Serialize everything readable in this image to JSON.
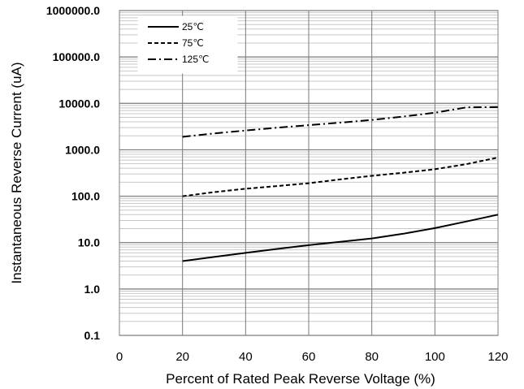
{
  "chart_data": {
    "type": "line",
    "title": "",
    "xlabel": "Percent of  Rated Peak Reverse Voltage (%)",
    "ylabel": "Instantaneous Reverse Current (uA)",
    "xlim": [
      0,
      120
    ],
    "ylim": [
      0.1,
      1000000
    ],
    "yscale": "log",
    "grid": true,
    "legend_position": "top-left",
    "x_ticks": [
      "0",
      "20",
      "40",
      "60",
      "80",
      "100",
      "120"
    ],
    "y_ticks": [
      "0.1",
      "1.0",
      "10.0",
      "100.0",
      "1000.0",
      "10000.0",
      "100000.0",
      "1000000.0"
    ],
    "x_tick_values": [
      0,
      20,
      40,
      60,
      80,
      100,
      120
    ],
    "y_tick_values": [
      0.1,
      1,
      10,
      100,
      1000,
      10000,
      100000,
      1000000
    ],
    "series": [
      {
        "name": "25℃",
        "style": "solid",
        "color": "#000000",
        "x": [
          20,
          30,
          40,
          50,
          60,
          70,
          80,
          90,
          100,
          110,
          120
        ],
        "y": [
          4.0,
          4.9,
          6.0,
          7.3,
          8.8,
          10.4,
          12.3,
          15.5,
          20.5,
          28.5,
          40.0
        ]
      },
      {
        "name": "75℃",
        "style": "dashed",
        "color": "#000000",
        "x": [
          20,
          30,
          40,
          50,
          60,
          70,
          80,
          90,
          100,
          110,
          120
        ],
        "y": [
          100,
          122,
          145,
          165,
          190,
          230,
          275,
          320,
          380,
          490,
          680
        ]
      },
      {
        "name": "125℃",
        "style": "dashdot",
        "color": "#000000",
        "x": [
          20,
          30,
          40,
          50,
          60,
          70,
          80,
          90,
          100,
          110,
          120
        ],
        "y": [
          1900,
          2250,
          2600,
          3000,
          3400,
          3850,
          4400,
          5200,
          6300,
          8200,
          8300
        ]
      }
    ]
  }
}
